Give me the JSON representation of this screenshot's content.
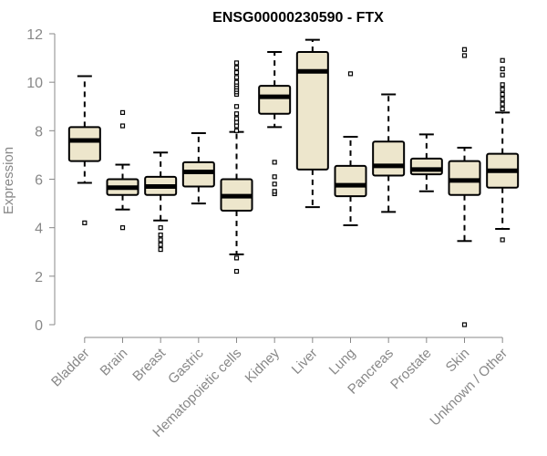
{
  "chart_data": {
    "type": "boxplot",
    "title": "ENSG00000230590 - FTX",
    "xlabel": "",
    "ylabel": "Expression",
    "ylim": [
      0,
      12
    ],
    "yticks": [
      0,
      2,
      4,
      6,
      8,
      10,
      12
    ],
    "categories": [
      "Bladder",
      "Brain",
      "Breast",
      "Gastric",
      "Hematopoietic cells",
      "Kidney",
      "Liver",
      "Lung",
      "Pancreas",
      "Prostate",
      "Skin",
      "Unknown / Other"
    ],
    "boxes": [
      {
        "name": "Bladder",
        "whisker_low": 5.85,
        "q1": 6.75,
        "median": 7.6,
        "q3": 8.15,
        "whisker_high": 10.25,
        "outliers": [
          4.2
        ]
      },
      {
        "name": "Brain",
        "whisker_low": 4.75,
        "q1": 5.35,
        "median": 5.65,
        "q3": 6.0,
        "whisker_high": 6.6,
        "outliers": [
          4.0,
          8.2,
          8.75
        ]
      },
      {
        "name": "Breast",
        "whisker_low": 4.3,
        "q1": 5.35,
        "median": 5.7,
        "q3": 6.1,
        "whisker_high": 7.1,
        "outliers": [
          3.1,
          3.3,
          3.5,
          3.7,
          4.0
        ]
      },
      {
        "name": "Gastric",
        "whisker_low": 5.0,
        "q1": 5.7,
        "median": 6.3,
        "q3": 6.7,
        "whisker_high": 7.9,
        "outliers": []
      },
      {
        "name": "Hematopoietic cells",
        "whisker_low": 2.9,
        "q1": 4.7,
        "median": 5.3,
        "q3": 6.0,
        "whisker_high": 7.95,
        "outliers": [
          2.2,
          2.75,
          8.0,
          8.2,
          8.35,
          8.5,
          8.7,
          9.0,
          9.5,
          9.6,
          9.7,
          9.8,
          9.9,
          10.0,
          10.2,
          10.4,
          10.6,
          10.8
        ]
      },
      {
        "name": "Kidney",
        "whisker_low": 8.15,
        "q1": 8.7,
        "median": 9.4,
        "q3": 9.85,
        "whisker_high": 11.25,
        "outliers": [
          5.4,
          5.5,
          5.8,
          6.1,
          6.7
        ]
      },
      {
        "name": "Liver",
        "whisker_low": 4.85,
        "q1": 6.4,
        "median": 10.45,
        "q3": 11.25,
        "whisker_high": 11.75,
        "outliers": []
      },
      {
        "name": "Lung",
        "whisker_low": 4.1,
        "q1": 5.3,
        "median": 5.75,
        "q3": 6.55,
        "whisker_high": 7.75,
        "outliers": [
          10.35
        ]
      },
      {
        "name": "Pancreas",
        "whisker_low": 4.65,
        "q1": 6.15,
        "median": 6.55,
        "q3": 7.55,
        "whisker_high": 9.5,
        "outliers": []
      },
      {
        "name": "Prostate",
        "whisker_low": 5.5,
        "q1": 6.2,
        "median": 6.4,
        "q3": 6.85,
        "whisker_high": 7.85,
        "outliers": []
      },
      {
        "name": "Skin",
        "whisker_low": 3.45,
        "q1": 5.35,
        "median": 5.95,
        "q3": 6.75,
        "whisker_high": 7.3,
        "outliers": [
          0.0,
          11.1,
          11.35
        ]
      },
      {
        "name": "Unknown / Other",
        "whisker_low": 3.95,
        "q1": 5.65,
        "median": 6.35,
        "q3": 7.05,
        "whisker_high": 8.75,
        "outliers": [
          3.5,
          8.9,
          9.1,
          9.3,
          9.5,
          9.7,
          9.9,
          10.3,
          10.55,
          10.9
        ]
      }
    ],
    "box_fill": "#ede6cc",
    "box_stroke": "#000000",
    "grid": false
  }
}
